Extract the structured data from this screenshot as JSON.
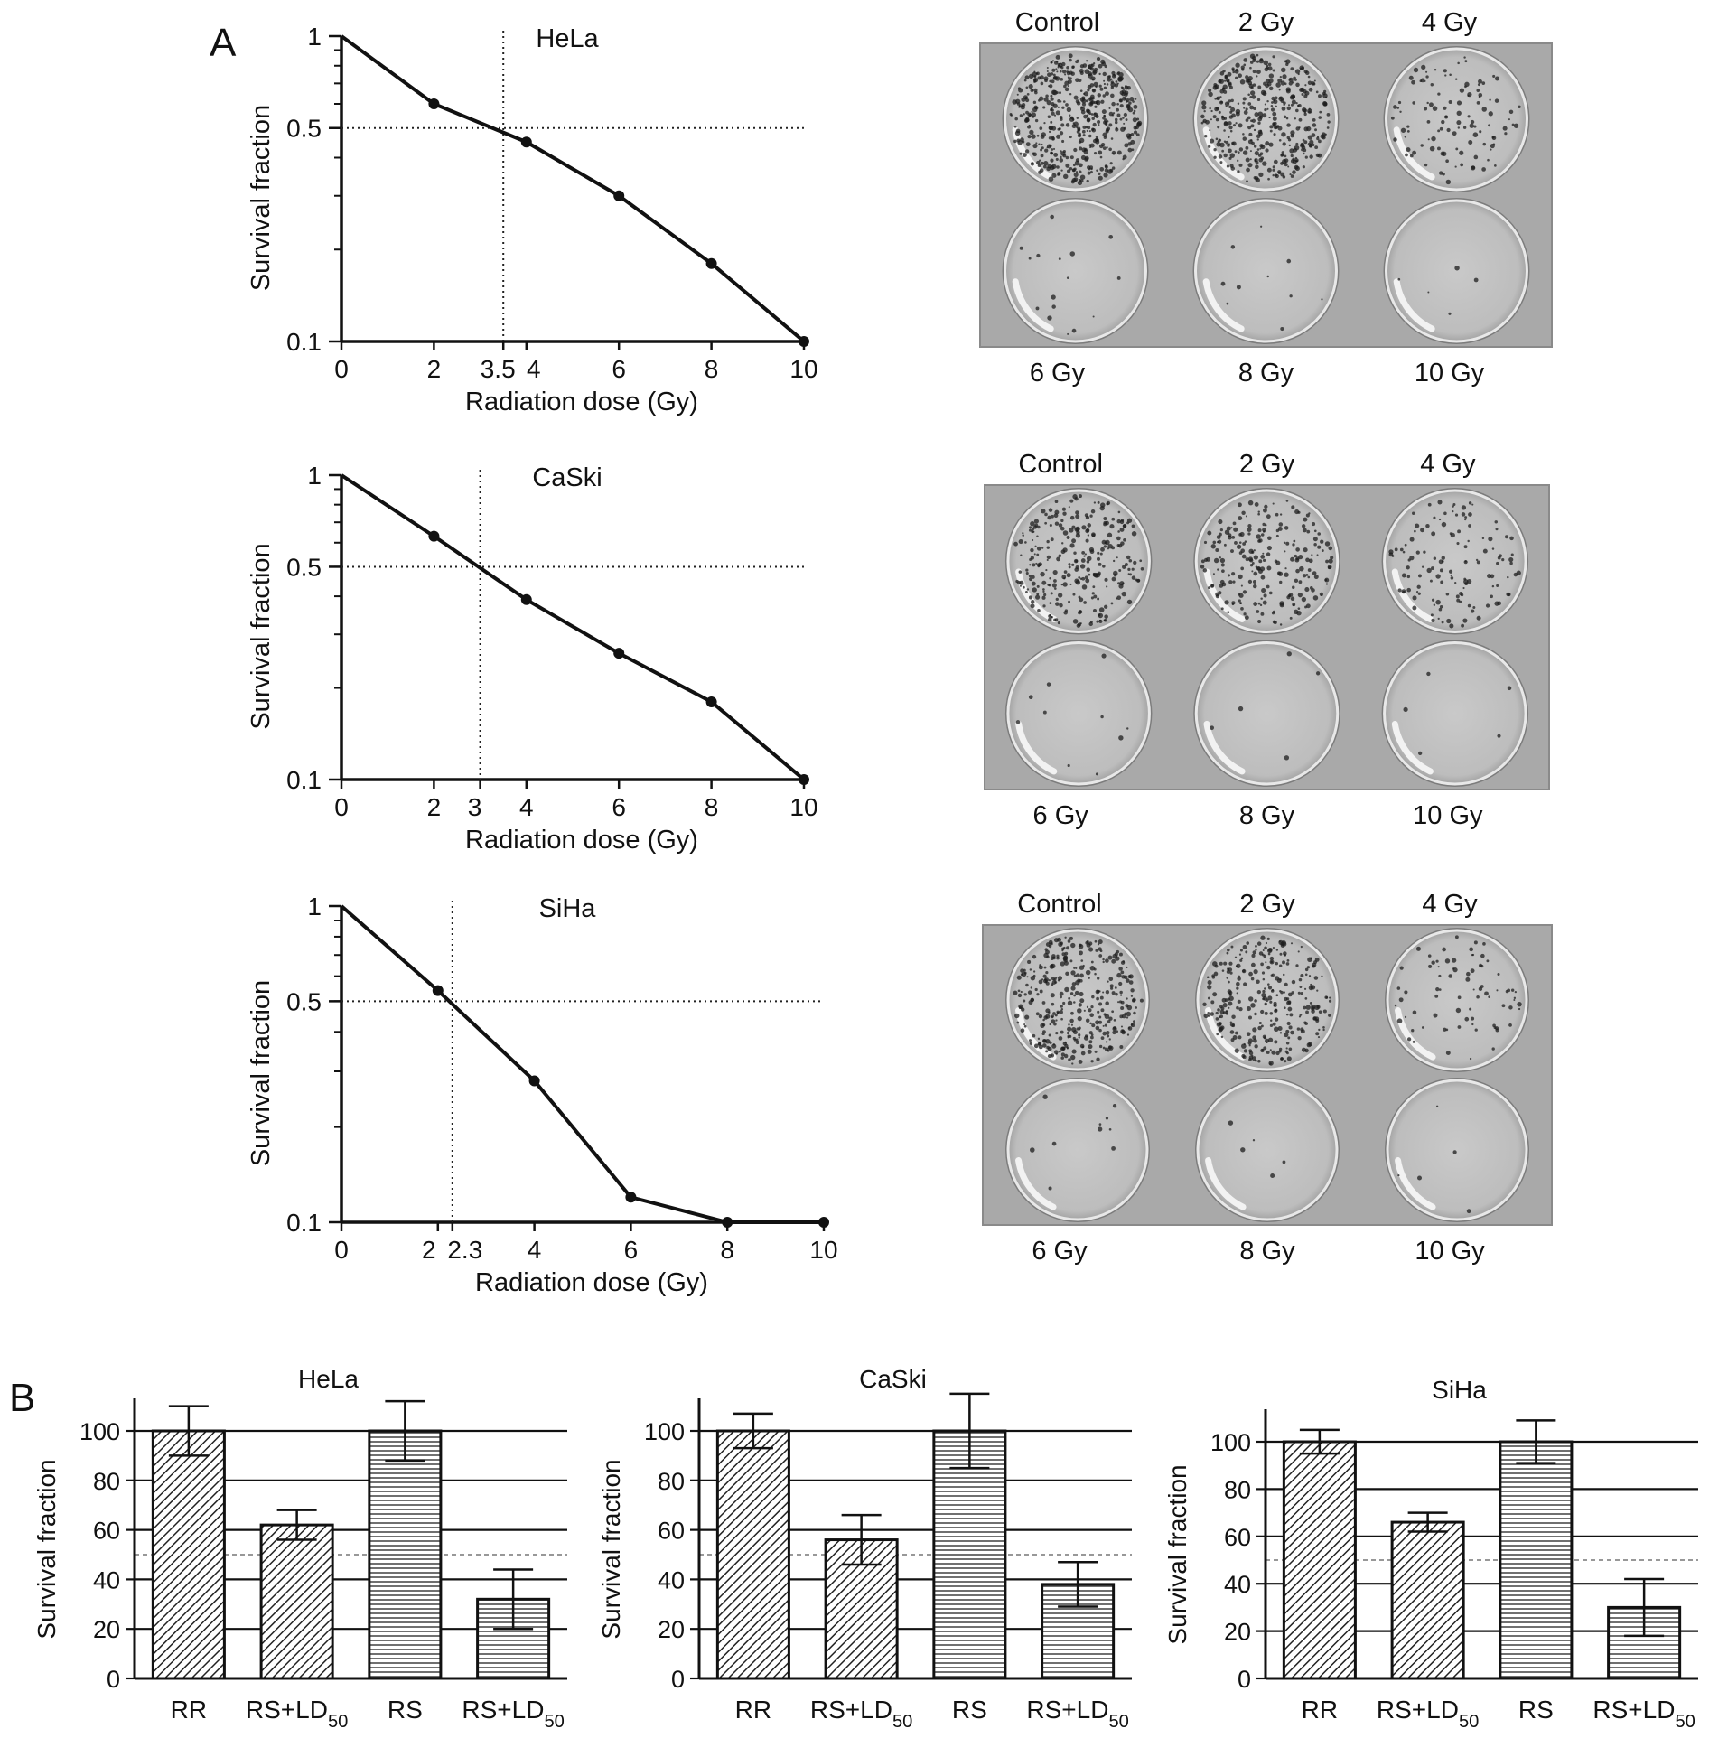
{
  "panels": {
    "a": "A",
    "b": "B"
  },
  "chart_data": [
    {
      "id": "a-hela",
      "type": "line",
      "title": "HeLa",
      "xlabel": "Radiation dose (Gy)",
      "ylabel": "Survival fraction",
      "yscale": "log",
      "ylim": [
        0.1,
        1
      ],
      "xlim": [
        0,
        10
      ],
      "x_ticks": [
        "0",
        "2",
        "3.5",
        "4",
        "6",
        "8",
        "10"
      ],
      "y_ticks": [
        "0.1",
        "0.5",
        "1"
      ],
      "x": [
        0,
        2,
        4,
        6,
        8,
        10
      ],
      "y": [
        1,
        0.6,
        0.45,
        0.3,
        0.18,
        0.1
      ],
      "ld50_dose": 3.5,
      "ref_line_y": 0.5
    },
    {
      "id": "a-caski",
      "type": "line",
      "title": "CaSki",
      "xlabel": "Radiation dose (Gy)",
      "ylabel": "Survival fraction",
      "yscale": "log",
      "ylim": [
        0.1,
        1
      ],
      "xlim": [
        0,
        10
      ],
      "x_ticks": [
        "0",
        "2",
        "3",
        "4",
        "6",
        "8",
        "10"
      ],
      "y_ticks": [
        "0.1",
        "0.5",
        "1"
      ],
      "x": [
        0,
        2,
        4,
        6,
        8,
        10
      ],
      "y": [
        1,
        0.63,
        0.39,
        0.26,
        0.18,
        0.1
      ],
      "ld50_dose": 3,
      "ref_line_y": 0.5
    },
    {
      "id": "a-siha",
      "type": "line",
      "title": "SiHa",
      "xlabel": "Radiation dose (Gy)",
      "ylabel": "Survival fraction",
      "yscale": "log",
      "ylim": [
        0.1,
        1
      ],
      "xlim": [
        0,
        10
      ],
      "x_ticks": [
        "0",
        "2",
        "2.3",
        "4",
        "6",
        "8",
        "10"
      ],
      "y_ticks": [
        "0.1",
        "0.5",
        "1"
      ],
      "x": [
        0,
        2,
        4,
        6,
        8,
        10
      ],
      "y": [
        1,
        0.54,
        0.28,
        0.12,
        0.1,
        0.1
      ],
      "ld50_dose": 2.3,
      "ref_line_y": 0.5
    },
    {
      "id": "b-hela",
      "type": "bar",
      "title": "HeLa",
      "ylabel": "Survival fraction",
      "ylim": [
        0,
        100
      ],
      "y_ticks": [
        "0",
        "20",
        "40",
        "60",
        "80",
        "100"
      ],
      "categories": [
        "RR",
        "RS+LD50",
        "RS",
        "RS+LD50"
      ],
      "values": [
        100,
        62,
        100,
        32
      ],
      "errors": [
        10,
        6,
        12,
        12
      ],
      "patterns": [
        "diag",
        "diag",
        "horiz",
        "horiz"
      ],
      "ref_line_y": 50
    },
    {
      "id": "b-caski",
      "type": "bar",
      "title": "CaSki",
      "ylabel": "Survival fraction",
      "ylim": [
        0,
        100
      ],
      "y_ticks": [
        "0",
        "20",
        "40",
        "60",
        "80",
        "100"
      ],
      "categories": [
        "RR",
        "RS+LD50",
        "RS",
        "RS+LD50"
      ],
      "values": [
        100,
        56,
        100,
        38
      ],
      "errors": [
        7,
        10,
        15,
        9
      ],
      "patterns": [
        "diag",
        "diag",
        "horiz",
        "horiz"
      ],
      "ref_line_y": 50
    },
    {
      "id": "b-siha",
      "type": "bar",
      "title": "SiHa",
      "ylabel": "Survival fraction",
      "ylim": [
        0,
        100
      ],
      "y_ticks": [
        "0",
        "20",
        "40",
        "60",
        "80",
        "100"
      ],
      "categories": [
        "RR",
        "RS+LD50",
        "RS",
        "RS+LD50"
      ],
      "values": [
        100,
        66,
        100,
        30
      ],
      "errors": [
        5,
        4,
        9,
        12
      ],
      "patterns": [
        "diag",
        "diag",
        "horiz",
        "horiz"
      ],
      "ref_line_y": 50
    }
  ],
  "plates": [
    {
      "id": "plate-hela",
      "labels_top": [
        "Control",
        "2 Gy",
        "4 Gy"
      ],
      "labels_bottom": [
        "6 Gy",
        "8 Gy",
        "10 Gy"
      ],
      "colony_density": [
        1.0,
        0.8,
        0.22,
        0.03,
        0.02,
        0.01
      ]
    },
    {
      "id": "plate-caski",
      "labels_top": [
        "Control",
        "2 Gy",
        "4 Gy"
      ],
      "labels_bottom": [
        "6 Gy",
        "8 Gy",
        "10 Gy"
      ],
      "colony_density": [
        0.55,
        0.45,
        0.25,
        0.02,
        0.01,
        0.01
      ]
    },
    {
      "id": "plate-siha",
      "labels_top": [
        "Control",
        "2 Gy",
        "4 Gy"
      ],
      "labels_bottom": [
        "6 Gy",
        "8 Gy",
        "10 Gy"
      ],
      "colony_density": [
        0.7,
        0.6,
        0.15,
        0.02,
        0.01,
        0.01
      ]
    }
  ]
}
